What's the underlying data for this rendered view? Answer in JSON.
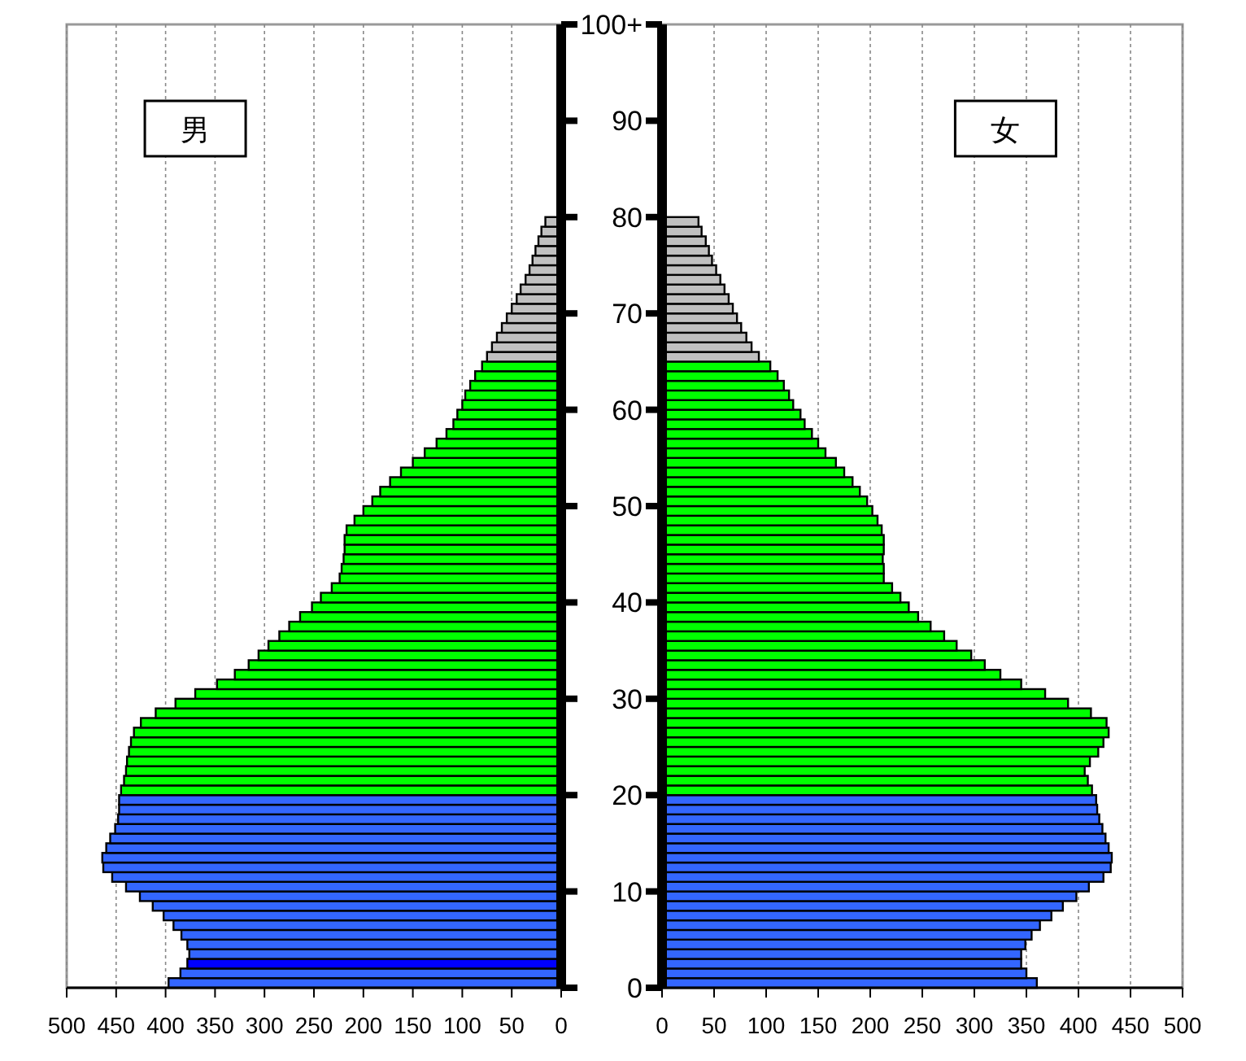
{
  "chart_data": [
    {
      "type": "bar",
      "orientation": "horizontal",
      "title": "男",
      "grid": "x",
      "tick_labels": "x",
      "x": [
        0,
        1,
        2,
        3,
        4,
        5,
        6,
        7,
        8,
        9,
        10,
        11,
        12,
        13,
        14,
        15,
        16,
        17,
        18,
        19,
        20,
        21,
        22,
        23,
        24,
        25,
        26,
        27,
        28,
        29,
        30,
        31,
        32,
        33,
        34,
        35,
        36,
        37,
        38,
        39,
        40,
        41,
        42,
        43,
        44,
        45,
        46,
        47,
        48,
        49,
        50,
        51,
        52,
        53,
        54,
        55,
        56,
        57,
        58,
        59,
        60,
        61,
        62,
        63,
        64,
        65,
        66,
        67,
        68,
        69,
        70,
        71,
        72,
        73,
        74,
        75,
        76,
        77,
        78,
        79
      ],
      "values": [
        397,
        385,
        378,
        376,
        378,
        384,
        392,
        402,
        413,
        426,
        440,
        454,
        463,
        464,
        460,
        456,
        451,
        448,
        447,
        447,
        445,
        442,
        440,
        439,
        437,
        435,
        432,
        425,
        410,
        390,
        370,
        348,
        330,
        316,
        306,
        296,
        285,
        275,
        264,
        252,
        243,
        232,
        224,
        222,
        220,
        219,
        219,
        217,
        209,
        200,
        191,
        183,
        173,
        162,
        150,
        138,
        126,
        116,
        109,
        105,
        100,
        97,
        92,
        87,
        80,
        75,
        70,
        65,
        60,
        55,
        50,
        45,
        41,
        36,
        32,
        29,
        26,
        23,
        20,
        16
      ],
      "colors": [
        "#3366ff",
        "#3366ff",
        "#0000ff",
        "#3366ff",
        "#3366ff",
        "#3366ff",
        "#3366ff",
        "#3366ff",
        "#3366ff",
        "#3366ff",
        "#3366ff",
        "#3366ff",
        "#3366ff",
        "#3366ff",
        "#3366ff",
        "#3366ff",
        "#3366ff",
        "#3366ff",
        "#3366ff",
        "#3366ff",
        "#00ff00",
        "#00ff00",
        "#00ff00",
        "#00ff00",
        "#00ff00",
        "#00ff00",
        "#00ff00",
        "#00ff00",
        "#00ff00",
        "#00ff00",
        "#00ff00",
        "#00ff00",
        "#00ff00",
        "#00ff00",
        "#00ff00",
        "#00ff00",
        "#00ff00",
        "#00ff00",
        "#00ff00",
        "#00ff00",
        "#00ff00",
        "#00ff00",
        "#00ff00",
        "#00ff00",
        "#00ff00",
        "#00ff00",
        "#00ff00",
        "#00ff00",
        "#00ff00",
        "#00ff00",
        "#00ff00",
        "#00ff00",
        "#00ff00",
        "#00ff00",
        "#00ff00",
        "#00ff00",
        "#00ff00",
        "#00ff00",
        "#00ff00",
        "#00ff00",
        "#00ff00",
        "#00ff00",
        "#00ff00",
        "#00ff00",
        "#00ff00",
        "#c0c0c0",
        "#c0c0c0",
        "#c0c0c0",
        "#c0c0c0",
        "#c0c0c0",
        "#c0c0c0",
        "#c0c0c0",
        "#c0c0c0",
        "#c0c0c0",
        "#c0c0c0",
        "#c0c0c0",
        "#c0c0c0",
        "#c0c0c0",
        "#c0c0c0",
        "#c0c0c0"
      ],
      "xlim": [
        500,
        0
      ],
      "xticks": [
        500,
        450,
        400,
        350,
        300,
        250,
        200,
        150,
        100,
        50,
        0
      ],
      "ylim": [
        0,
        100
      ],
      "yticks": [
        0,
        10,
        20,
        30,
        40,
        50,
        60,
        70,
        80,
        90,
        100
      ]
    },
    {
      "type": "bar",
      "orientation": "horizontal",
      "title": "女",
      "grid": "x",
      "x": [
        0,
        1,
        2,
        3,
        4,
        5,
        6,
        7,
        8,
        9,
        10,
        11,
        12,
        13,
        14,
        15,
        16,
        17,
        18,
        19,
        20,
        21,
        22,
        23,
        24,
        25,
        26,
        27,
        28,
        29,
        30,
        31,
        32,
        33,
        34,
        35,
        36,
        37,
        38,
        39,
        40,
        41,
        42,
        43,
        44,
        45,
        46,
        47,
        48,
        49,
        50,
        51,
        52,
        53,
        54,
        55,
        56,
        57,
        58,
        59,
        60,
        61,
        62,
        63,
        64,
        65,
        66,
        67,
        68,
        69,
        70,
        71,
        72,
        73,
        74,
        75,
        76,
        77,
        78,
        79
      ],
      "values": [
        360,
        350,
        345,
        345,
        349,
        355,
        363,
        374,
        385,
        398,
        410,
        424,
        431,
        432,
        429,
        426,
        423,
        420,
        418,
        417,
        413,
        409,
        406,
        411,
        419,
        424,
        429,
        427,
        412,
        390,
        368,
        345,
        325,
        310,
        297,
        283,
        271,
        258,
        246,
        237,
        229,
        221,
        213,
        213,
        212,
        213,
        213,
        211,
        207,
        202,
        197,
        190,
        183,
        175,
        167,
        157,
        150,
        144,
        137,
        133,
        126,
        122,
        117,
        111,
        104,
        93,
        86,
        81,
        76,
        72,
        68,
        64,
        60,
        56,
        52,
        48,
        45,
        42,
        38,
        35
      ],
      "colors": [
        "#3366ff",
        "#3366ff",
        "#3366ff",
        "#3366ff",
        "#3366ff",
        "#3366ff",
        "#3366ff",
        "#3366ff",
        "#3366ff",
        "#3366ff",
        "#3366ff",
        "#3366ff",
        "#3366ff",
        "#3366ff",
        "#3366ff",
        "#3366ff",
        "#3366ff",
        "#3366ff",
        "#3366ff",
        "#3366ff",
        "#00ff00",
        "#00ff00",
        "#00ff00",
        "#00ff00",
        "#00ff00",
        "#00ff00",
        "#00ff00",
        "#00ff00",
        "#00ff00",
        "#00ff00",
        "#00ff00",
        "#00ff00",
        "#00ff00",
        "#00ff00",
        "#00ff00",
        "#00ff00",
        "#00ff00",
        "#00ff00",
        "#00ff00",
        "#00ff00",
        "#00ff00",
        "#00ff00",
        "#00ff00",
        "#00ff00",
        "#00ff00",
        "#00ff00",
        "#00ff00",
        "#00ff00",
        "#00ff00",
        "#00ff00",
        "#00ff00",
        "#00ff00",
        "#00ff00",
        "#00ff00",
        "#00ff00",
        "#00ff00",
        "#00ff00",
        "#00ff00",
        "#00ff00",
        "#00ff00",
        "#00ff00",
        "#00ff00",
        "#00ff00",
        "#00ff00",
        "#00ff00",
        "#c0c0c0",
        "#c0c0c0",
        "#c0c0c0",
        "#c0c0c0",
        "#c0c0c0",
        "#c0c0c0",
        "#c0c0c0",
        "#c0c0c0",
        "#c0c0c0",
        "#c0c0c0",
        "#c0c0c0",
        "#c0c0c0",
        "#c0c0c0",
        "#c0c0c0",
        "#c0c0c0"
      ],
      "xlim": [
        0,
        500
      ],
      "xticks": [
        0,
        50,
        100,
        150,
        200,
        250,
        300,
        350,
        400,
        450,
        500
      ],
      "ylim": [
        0,
        100
      ],
      "yticks": [
        0,
        10,
        20,
        30,
        40,
        50,
        60,
        70,
        80,
        90,
        {
          "value": 100,
          "label": "100+"
        }
      ]
    }
  ]
}
